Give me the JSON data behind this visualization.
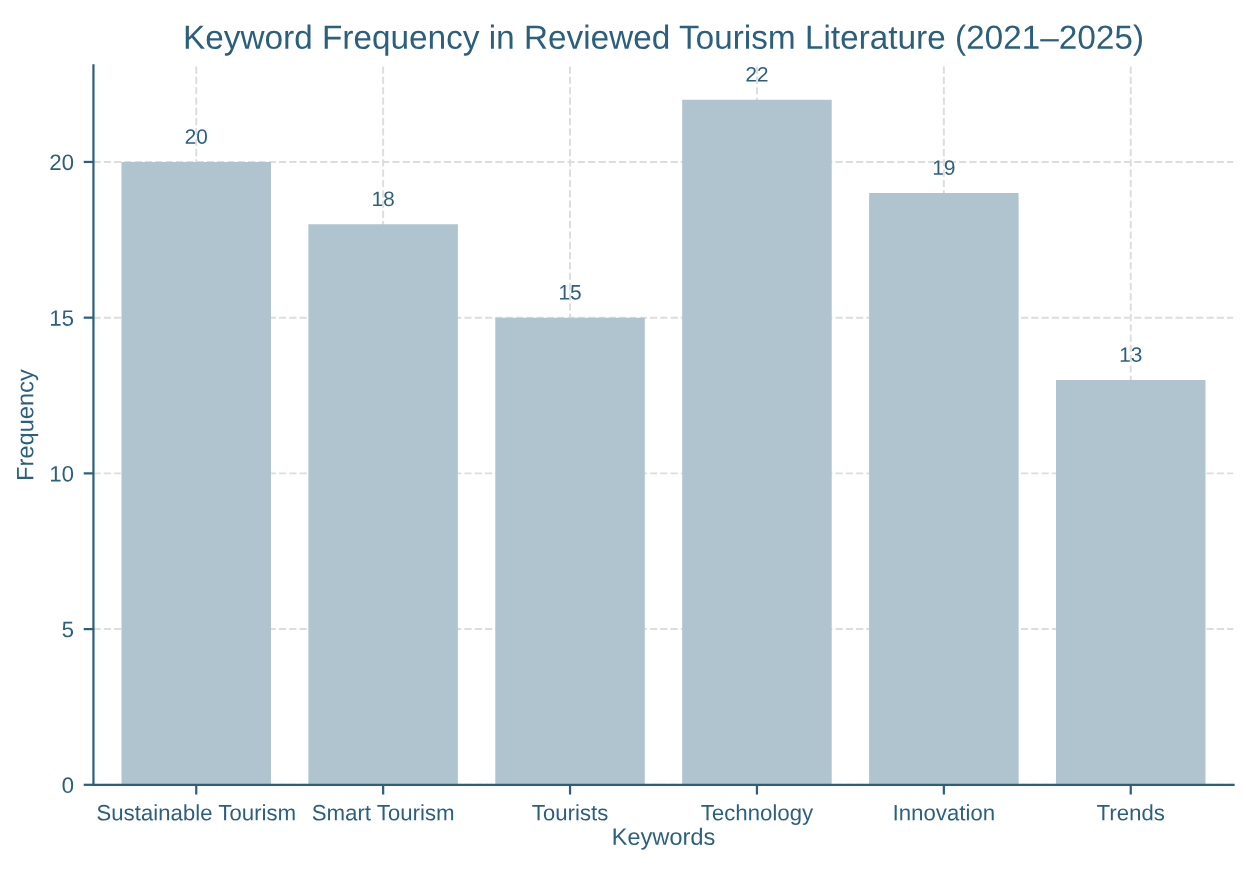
{
  "chart_data": {
    "type": "bar",
    "title": "Keyword Frequency in Reviewed Tourism Literature (2021–2025)",
    "xlabel": "Keywords",
    "ylabel": "Frequency",
    "categories": [
      "Sustainable Tourism",
      "Smart Tourism",
      "Tourists",
      "Technology",
      "Innovation",
      "Trends"
    ],
    "values": [
      20,
      18,
      15,
      22,
      19,
      13
    ],
    "color": "#b0c4cf",
    "ylim": [
      0,
      23.1
    ],
    "yticks": [
      0,
      5,
      10,
      15,
      20
    ],
    "grid": true,
    "data_labels": true
  }
}
